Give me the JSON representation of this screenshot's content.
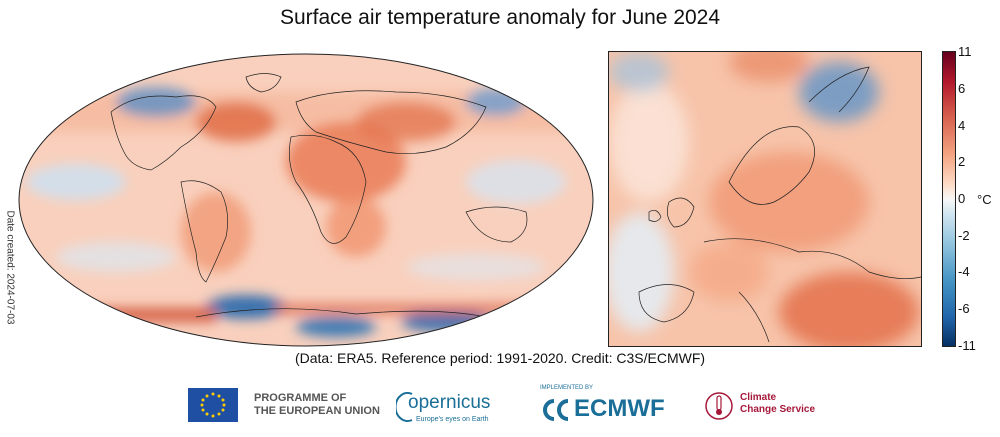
{
  "title": "Surface air temperature anomaly for June 2024",
  "date_created": "Date created: 2024-07-03",
  "credit": "(Data: ERA5.  Reference period: 1991-2020.  Credit: C3S/ECMWF)",
  "colorbar": {
    "unit": "°C",
    "ticks": [
      "11",
      "6",
      "4",
      "2",
      "0",
      "-2",
      "-4",
      "-6",
      "-11"
    ],
    "scale": [
      "#053061",
      "#2166ac",
      "#4393c3",
      "#92c5de",
      "#d1e5f0",
      "#f7f7f7",
      "#fddbc7",
      "#f4a582",
      "#d6604d",
      "#b2182b",
      "#67001f"
    ]
  },
  "logos": {
    "eu_line1": "PROGRAMME OF",
    "eu_line2": "THE EUROPEAN UNION",
    "copernicus_name": "opernicus",
    "copernicus_tagline": "Europe's eyes on Earth",
    "ecmwf_implemented": "IMPLEMENTED BY",
    "ecmwf_name": "ECMWF",
    "c3s_line1": "Climate",
    "c3s_line2": "Change Service"
  }
}
